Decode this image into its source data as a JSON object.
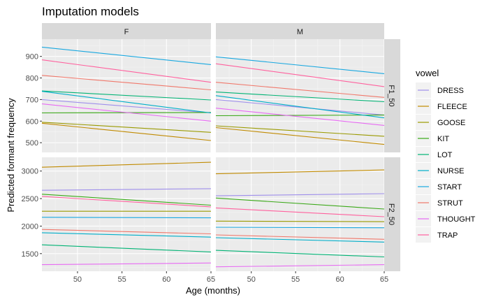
{
  "chart_data": {
    "type": "line",
    "title": "Imputation models",
    "xlabel": "Age (months)",
    "ylabel": "Predicted formant frequency",
    "x_range": [
      46,
      65
    ],
    "x_ticks": [
      50,
      55,
      60,
      65
    ],
    "col_facets": [
      "F",
      "M"
    ],
    "row_facets": [
      "F1_50",
      "F2_50"
    ],
    "legend": {
      "title": "vowel",
      "position": "right",
      "entries": [
        "DRESS",
        "FLEECE",
        "GOOSE",
        "KIT",
        "LOT",
        "NURSE",
        "START",
        "STRUT",
        "THOUGHT",
        "TRAP"
      ]
    },
    "colors": {
      "DRESS": "#9F8FEB",
      "FLEECE": "#C08A00",
      "GOOSE": "#9A9A00",
      "KIT": "#39A816",
      "LOT": "#00B374",
      "NURSE": "#00AEC9",
      "START": "#19A8E0",
      "STRUT": "#F0786B",
      "THOUGHT": "#E76BF3",
      "TRAP": "#FF619E"
    },
    "panels": [
      {
        "col": "F",
        "row": "F1_50",
        "y_range": [
          455,
          980
        ],
        "y_ticks": [
          500,
          600,
          700,
          800,
          900
        ],
        "series": [
          {
            "name": "DRESS",
            "values": [
              [
                46,
                700
              ],
              [
                65,
                638
              ]
            ]
          },
          {
            "name": "FLEECE",
            "values": [
              [
                46,
                590
              ],
              [
                65,
                510
              ]
            ]
          },
          {
            "name": "GOOSE",
            "values": [
              [
                46,
                595
              ],
              [
                65,
                548
              ]
            ]
          },
          {
            "name": "KIT",
            "values": [
              [
                46,
                638
              ],
              [
                65,
                640
              ]
            ]
          },
          {
            "name": "LOT",
            "values": [
              [
                46,
                740
              ],
              [
                65,
                698
              ]
            ]
          },
          {
            "name": "NURSE",
            "values": [
              [
                46,
                738
              ],
              [
                65,
                638
              ]
            ]
          },
          {
            "name": "START",
            "values": [
              [
                46,
                943
              ],
              [
                65,
                862
              ]
            ]
          },
          {
            "name": "STRUT",
            "values": [
              [
                46,
                812
              ],
              [
                65,
                745
              ]
            ]
          },
          {
            "name": "THOUGHT",
            "values": [
              [
                46,
                680
              ],
              [
                65,
                600
              ]
            ]
          },
          {
            "name": "TRAP",
            "values": [
              [
                46,
                884
              ],
              [
                65,
                780
              ]
            ]
          }
        ]
      },
      {
        "col": "M",
        "row": "F1_50",
        "y_range": [
          455,
          980
        ],
        "y_ticks": [
          500,
          600,
          700,
          800,
          900
        ],
        "series": [
          {
            "name": "DRESS",
            "values": [
              [
                46,
                700
              ],
              [
                65,
                628
              ]
            ]
          },
          {
            "name": "FLEECE",
            "values": [
              [
                46,
                570
              ],
              [
                65,
                492
              ]
            ]
          },
          {
            "name": "GOOSE",
            "values": [
              [
                46,
                578
              ],
              [
                65,
                530
              ]
            ]
          },
          {
            "name": "KIT",
            "values": [
              [
                46,
                625
              ],
              [
                65,
                628
              ]
            ]
          },
          {
            "name": "LOT",
            "values": [
              [
                46,
                735
              ],
              [
                65,
                690
              ]
            ]
          },
          {
            "name": "NURSE",
            "values": [
              [
                46,
                718
              ],
              [
                65,
                615
              ]
            ]
          },
          {
            "name": "START",
            "values": [
              [
                46,
                898
              ],
              [
                65,
                820
              ]
            ]
          },
          {
            "name": "STRUT",
            "values": [
              [
                46,
                780
              ],
              [
                65,
                710
              ]
            ]
          },
          {
            "name": "THOUGHT",
            "values": [
              [
                46,
                660
              ],
              [
                65,
                580
              ]
            ]
          },
          {
            "name": "TRAP",
            "values": [
              [
                46,
                866
              ],
              [
                65,
                760
              ]
            ]
          }
        ]
      },
      {
        "col": "F",
        "row": "F2_50",
        "y_range": [
          1180,
          3250
        ],
        "y_ticks": [
          1500,
          2000,
          2500,
          3000
        ],
        "series": [
          {
            "name": "DRESS",
            "values": [
              [
                46,
                2650
              ],
              [
                65,
                2680
              ]
            ]
          },
          {
            "name": "FLEECE",
            "values": [
              [
                46,
                3070
              ],
              [
                65,
                3160
              ]
            ]
          },
          {
            "name": "GOOSE",
            "values": [
              [
                46,
                2270
              ],
              [
                65,
                2270
              ]
            ]
          },
          {
            "name": "KIT",
            "values": [
              [
                46,
                2580
              ],
              [
                65,
                2380
              ]
            ]
          },
          {
            "name": "LOT",
            "values": [
              [
                46,
                1660
              ],
              [
                65,
                1530
              ]
            ]
          },
          {
            "name": "NURSE",
            "values": [
              [
                46,
                1880
              ],
              [
                65,
                1800
              ]
            ]
          },
          {
            "name": "START",
            "values": [
              [
                46,
                2160
              ],
              [
                65,
                2150
              ]
            ]
          },
          {
            "name": "STRUT",
            "values": [
              [
                46,
                1940
              ],
              [
                65,
                1860
              ]
            ]
          },
          {
            "name": "THOUGHT",
            "values": [
              [
                46,
                1300
              ],
              [
                65,
                1330
              ]
            ]
          },
          {
            "name": "TRAP",
            "values": [
              [
                46,
                2540
              ],
              [
                65,
                2350
              ]
            ]
          }
        ]
      },
      {
        "col": "M",
        "row": "F2_50",
        "y_range": [
          1180,
          3250
        ],
        "y_ticks": [
          1500,
          2000,
          2500,
          3000
        ],
        "series": [
          {
            "name": "DRESS",
            "values": [
              [
                46,
                2550
              ],
              [
                65,
                2590
              ]
            ]
          },
          {
            "name": "FLEECE",
            "values": [
              [
                46,
                2950
              ],
              [
                65,
                3020
              ]
            ]
          },
          {
            "name": "GOOSE",
            "values": [
              [
                46,
                2090
              ],
              [
                65,
                2080
              ]
            ]
          },
          {
            "name": "KIT",
            "values": [
              [
                46,
                2510
              ],
              [
                65,
                2310
              ]
            ]
          },
          {
            "name": "LOT",
            "values": [
              [
                46,
                1560
              ],
              [
                65,
                1440
              ]
            ]
          },
          {
            "name": "NURSE",
            "values": [
              [
                46,
                1790
              ],
              [
                65,
                1710
              ]
            ]
          },
          {
            "name": "START",
            "values": [
              [
                46,
                1980
              ],
              [
                65,
                1970
              ]
            ]
          },
          {
            "name": "STRUT",
            "values": [
              [
                46,
                1840
              ],
              [
                65,
                1760
              ]
            ]
          },
          {
            "name": "THOUGHT",
            "values": [
              [
                46,
                1260
              ],
              [
                65,
                1300
              ]
            ]
          },
          {
            "name": "TRAP",
            "values": [
              [
                46,
                2330
              ],
              [
                65,
                2170
              ]
            ]
          }
        ]
      }
    ]
  }
}
